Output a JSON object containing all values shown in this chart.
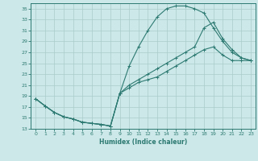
{
  "title": "",
  "xlabel": "Humidex (Indice chaleur)",
  "ylabel": "",
  "bg_color": "#cce8e8",
  "grid_color": "#aacccc",
  "line_color": "#2d7a72",
  "xlim": [
    -0.5,
    23.5
  ],
  "ylim": [
    13,
    36
  ],
  "xticks": [
    0,
    1,
    2,
    3,
    4,
    5,
    6,
    7,
    8,
    9,
    10,
    11,
    12,
    13,
    14,
    15,
    16,
    17,
    18,
    19,
    20,
    21,
    22,
    23
  ],
  "yticks": [
    13,
    15,
    17,
    19,
    21,
    23,
    25,
    27,
    29,
    31,
    33,
    35
  ],
  "curve1_x": [
    0,
    1,
    2,
    3,
    4,
    5,
    6,
    7,
    8,
    9,
    10,
    11,
    12,
    13,
    14,
    15,
    16,
    17,
    18,
    19,
    20,
    21,
    22,
    23
  ],
  "curve1_y": [
    18.5,
    17.2,
    16.0,
    15.2,
    14.8,
    14.2,
    14.0,
    13.8,
    13.5,
    19.5,
    24.5,
    28.0,
    31.0,
    33.5,
    35.0,
    35.5,
    35.5,
    35.0,
    34.2,
    31.5,
    29.0,
    27.0,
    26.0,
    25.5
  ],
  "curve2_x": [
    0,
    1,
    2,
    3,
    4,
    5,
    6,
    7,
    8,
    9,
    10,
    11,
    12,
    13,
    14,
    15,
    16,
    17,
    18,
    19,
    20,
    21,
    22,
    23
  ],
  "curve2_y": [
    18.5,
    17.2,
    16.0,
    15.2,
    14.8,
    14.2,
    14.0,
    13.8,
    13.5,
    19.5,
    21.0,
    22.0,
    23.0,
    24.0,
    25.0,
    26.0,
    27.0,
    28.0,
    31.5,
    32.5,
    29.5,
    27.5,
    26.0,
    25.5
  ],
  "curve3_x": [
    0,
    1,
    2,
    3,
    4,
    5,
    6,
    7,
    8,
    9,
    10,
    11,
    12,
    13,
    14,
    15,
    16,
    17,
    18,
    19,
    20,
    21,
    22,
    23
  ],
  "curve3_y": [
    18.5,
    17.2,
    16.0,
    15.2,
    14.8,
    14.2,
    14.0,
    13.8,
    13.5,
    19.5,
    20.5,
    21.5,
    22.0,
    22.5,
    23.5,
    24.5,
    25.5,
    26.5,
    27.5,
    28.0,
    26.5,
    25.5,
    25.5,
    25.5
  ]
}
